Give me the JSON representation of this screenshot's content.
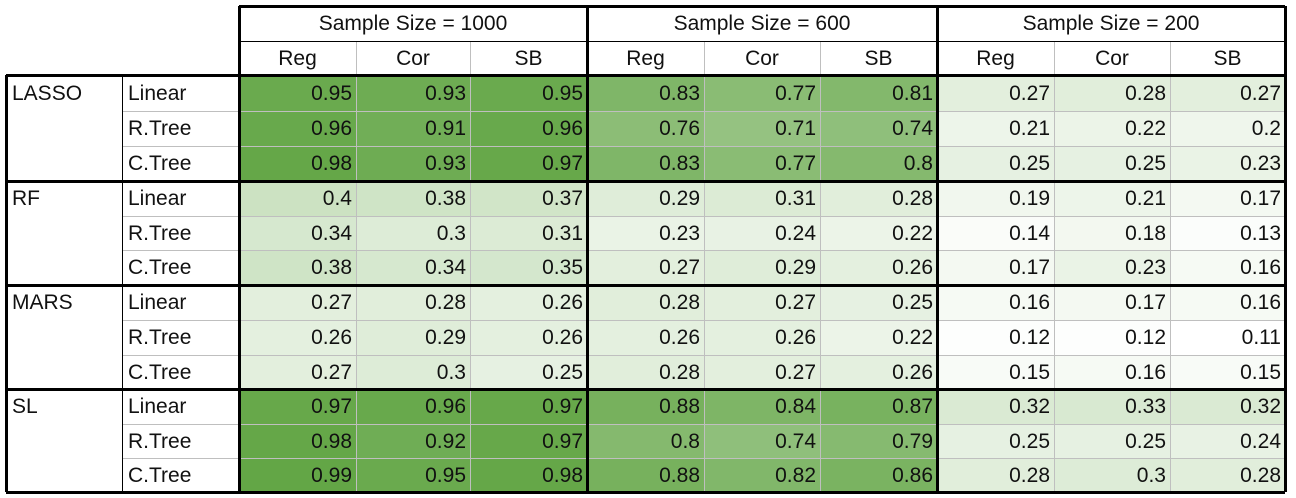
{
  "chart_data": {
    "type": "table",
    "groups": [
      "Sample Size = 1000",
      "Sample Size = 600",
      "Sample Size = 200"
    ],
    "subcolumns": [
      "Reg",
      "Cor",
      "SB"
    ],
    "methods": [
      {
        "name": "LASSO",
        "rows": [
          {
            "label": "Linear",
            "values": [
              0.95,
              0.93,
              0.95,
              0.83,
              0.77,
              0.81,
              0.27,
              0.28,
              0.27
            ]
          },
          {
            "label": "R.Tree",
            "values": [
              0.96,
              0.91,
              0.96,
              0.76,
              0.71,
              0.74,
              0.21,
              0.22,
              0.2
            ]
          },
          {
            "label": "C.Tree",
            "values": [
              0.98,
              0.93,
              0.97,
              0.83,
              0.77,
              0.8,
              0.25,
              0.25,
              0.23
            ]
          }
        ]
      },
      {
        "name": "RF",
        "rows": [
          {
            "label": "Linear",
            "values": [
              0.4,
              0.38,
              0.37,
              0.29,
              0.31,
              0.28,
              0.19,
              0.21,
              0.17
            ]
          },
          {
            "label": "R.Tree",
            "values": [
              0.34,
              0.3,
              0.31,
              0.23,
              0.24,
              0.22,
              0.14,
              0.18,
              0.13
            ]
          },
          {
            "label": "C.Tree",
            "values": [
              0.38,
              0.34,
              0.35,
              0.27,
              0.29,
              0.26,
              0.17,
              0.23,
              0.16
            ]
          }
        ]
      },
      {
        "name": "MARS",
        "rows": [
          {
            "label": "Linear",
            "values": [
              0.27,
              0.28,
              0.26,
              0.28,
              0.27,
              0.25,
              0.16,
              0.17,
              0.16
            ]
          },
          {
            "label": "R.Tree",
            "values": [
              0.26,
              0.29,
              0.26,
              0.26,
              0.26,
              0.22,
              0.12,
              0.12,
              0.11
            ]
          },
          {
            "label": "C.Tree",
            "values": [
              0.27,
              0.3,
              0.25,
              0.28,
              0.27,
              0.26,
              0.15,
              0.16,
              0.15
            ]
          }
        ]
      },
      {
        "name": "SL",
        "rows": [
          {
            "label": "Linear",
            "values": [
              0.97,
              0.96,
              0.97,
              0.88,
              0.84,
              0.87,
              0.32,
              0.33,
              0.32
            ]
          },
          {
            "label": "R.Tree",
            "values": [
              0.98,
              0.92,
              0.97,
              0.8,
              0.74,
              0.79,
              0.25,
              0.25,
              0.24
            ]
          },
          {
            "label": "C.Tree",
            "values": [
              0.99,
              0.95,
              0.98,
              0.88,
              0.82,
              0.86,
              0.28,
              0.3,
              0.28
            ]
          }
        ]
      }
    ],
    "color_scale": {
      "low": "#ffffff",
      "high": "#63a646"
    }
  }
}
